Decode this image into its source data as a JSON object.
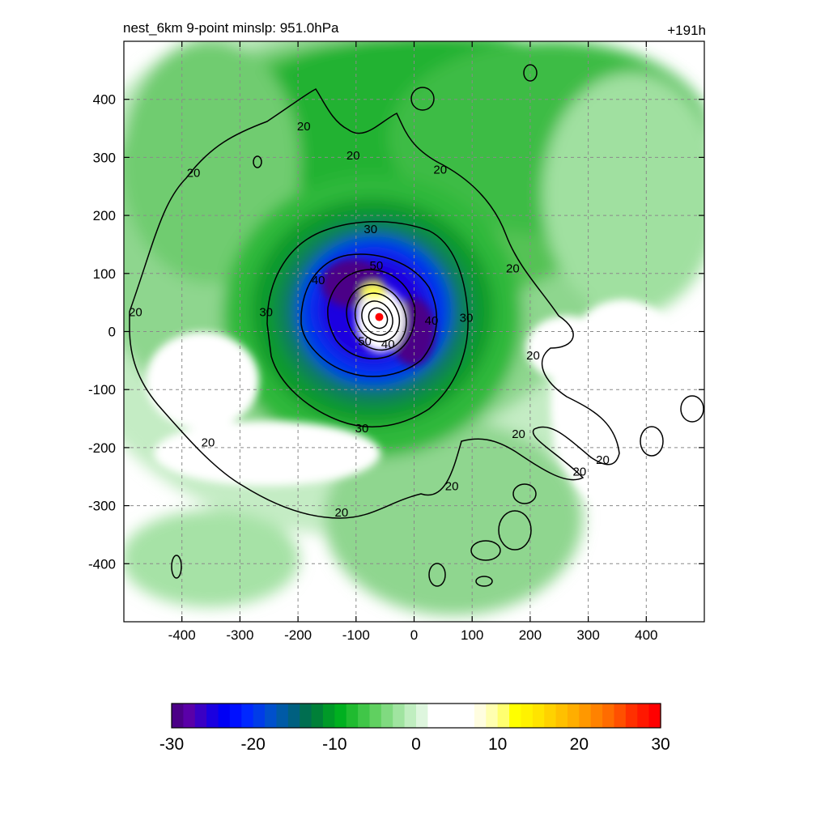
{
  "chart_data": {
    "type": "heatmap",
    "title": "nest_6km  9-point minslp: 951.0hPa",
    "time_label": "+191h",
    "x_ticks": [
      -400,
      -300,
      -200,
      -100,
      0,
      100,
      200,
      300,
      400
    ],
    "y_ticks": [
      400,
      300,
      200,
      100,
      0,
      -100,
      -200,
      -300,
      -400
    ],
    "xlim": [
      -500,
      500
    ],
    "ylim": [
      -500,
      500
    ],
    "grid": true,
    "storm_center": {
      "x": -60,
      "y": 25,
      "color": "#ff0000"
    },
    "contour_levels": [
      20,
      30,
      40,
      50
    ],
    "contour_labels": [
      {
        "text": "20",
        "x": -190,
        "y": 355
      },
      {
        "text": "20",
        "x": -105,
        "y": 305
      },
      {
        "text": "20",
        "x": 45,
        "y": 280
      },
      {
        "text": "20",
        "x": -380,
        "y": 275
      },
      {
        "text": "20",
        "x": -480,
        "y": 35
      },
      {
        "text": "20",
        "x": 170,
        "y": 110
      },
      {
        "text": "20",
        "x": 205,
        "y": -40
      },
      {
        "text": "20",
        "x": 180,
        "y": -175
      },
      {
        "text": "20",
        "x": 285,
        "y": -240
      },
      {
        "text": "20",
        "x": 325,
        "y": -220
      },
      {
        "text": "20",
        "x": -355,
        "y": -190
      },
      {
        "text": "20",
        "x": 65,
        "y": -265
      },
      {
        "text": "20",
        "x": -125,
        "y": -310
      },
      {
        "text": "30",
        "x": -75,
        "y": 178
      },
      {
        "text": "30",
        "x": -255,
        "y": 35
      },
      {
        "text": "30",
        "x": 90,
        "y": 25
      },
      {
        "text": "30",
        "x": -90,
        "y": -165
      },
      {
        "text": "40",
        "x": -165,
        "y": 90
      },
      {
        "text": "40",
        "x": 30,
        "y": 20
      },
      {
        "text": "40",
        "x": -45,
        "y": -20
      },
      {
        "text": "50",
        "x": -65,
        "y": 115
      },
      {
        "text": "50",
        "x": -85,
        "y": -15
      }
    ],
    "colorbar": {
      "ticks": [
        "-30",
        "-20",
        "-10",
        "0",
        "10",
        "20",
        "30"
      ],
      "range": [
        -30,
        30
      ],
      "colors": [
        "#4b0087",
        "#5a00a8",
        "#3a00c4",
        "#1a00e0",
        "#0000f5",
        "#0010ff",
        "#0028ff",
        "#003ce8",
        "#0050cc",
        "#005aa6",
        "#006080",
        "#006e50",
        "#008038",
        "#009a28",
        "#00b020",
        "#20bb30",
        "#40c648",
        "#60d060",
        "#80da80",
        "#a0e4a0",
        "#c0eec0",
        "#def6de",
        "#ffffff",
        "#ffffff",
        "#ffffff",
        "#ffffff",
        "#fffde0",
        "#ffffb0",
        "#ffff70",
        "#ffff00",
        "#fff200",
        "#ffe400",
        "#ffd200",
        "#ffc000",
        "#ffae00",
        "#ff9800",
        "#ff8200",
        "#ff6c00",
        "#ff5000",
        "#ff3000",
        "#ff1800",
        "#ff0000"
      ]
    }
  }
}
